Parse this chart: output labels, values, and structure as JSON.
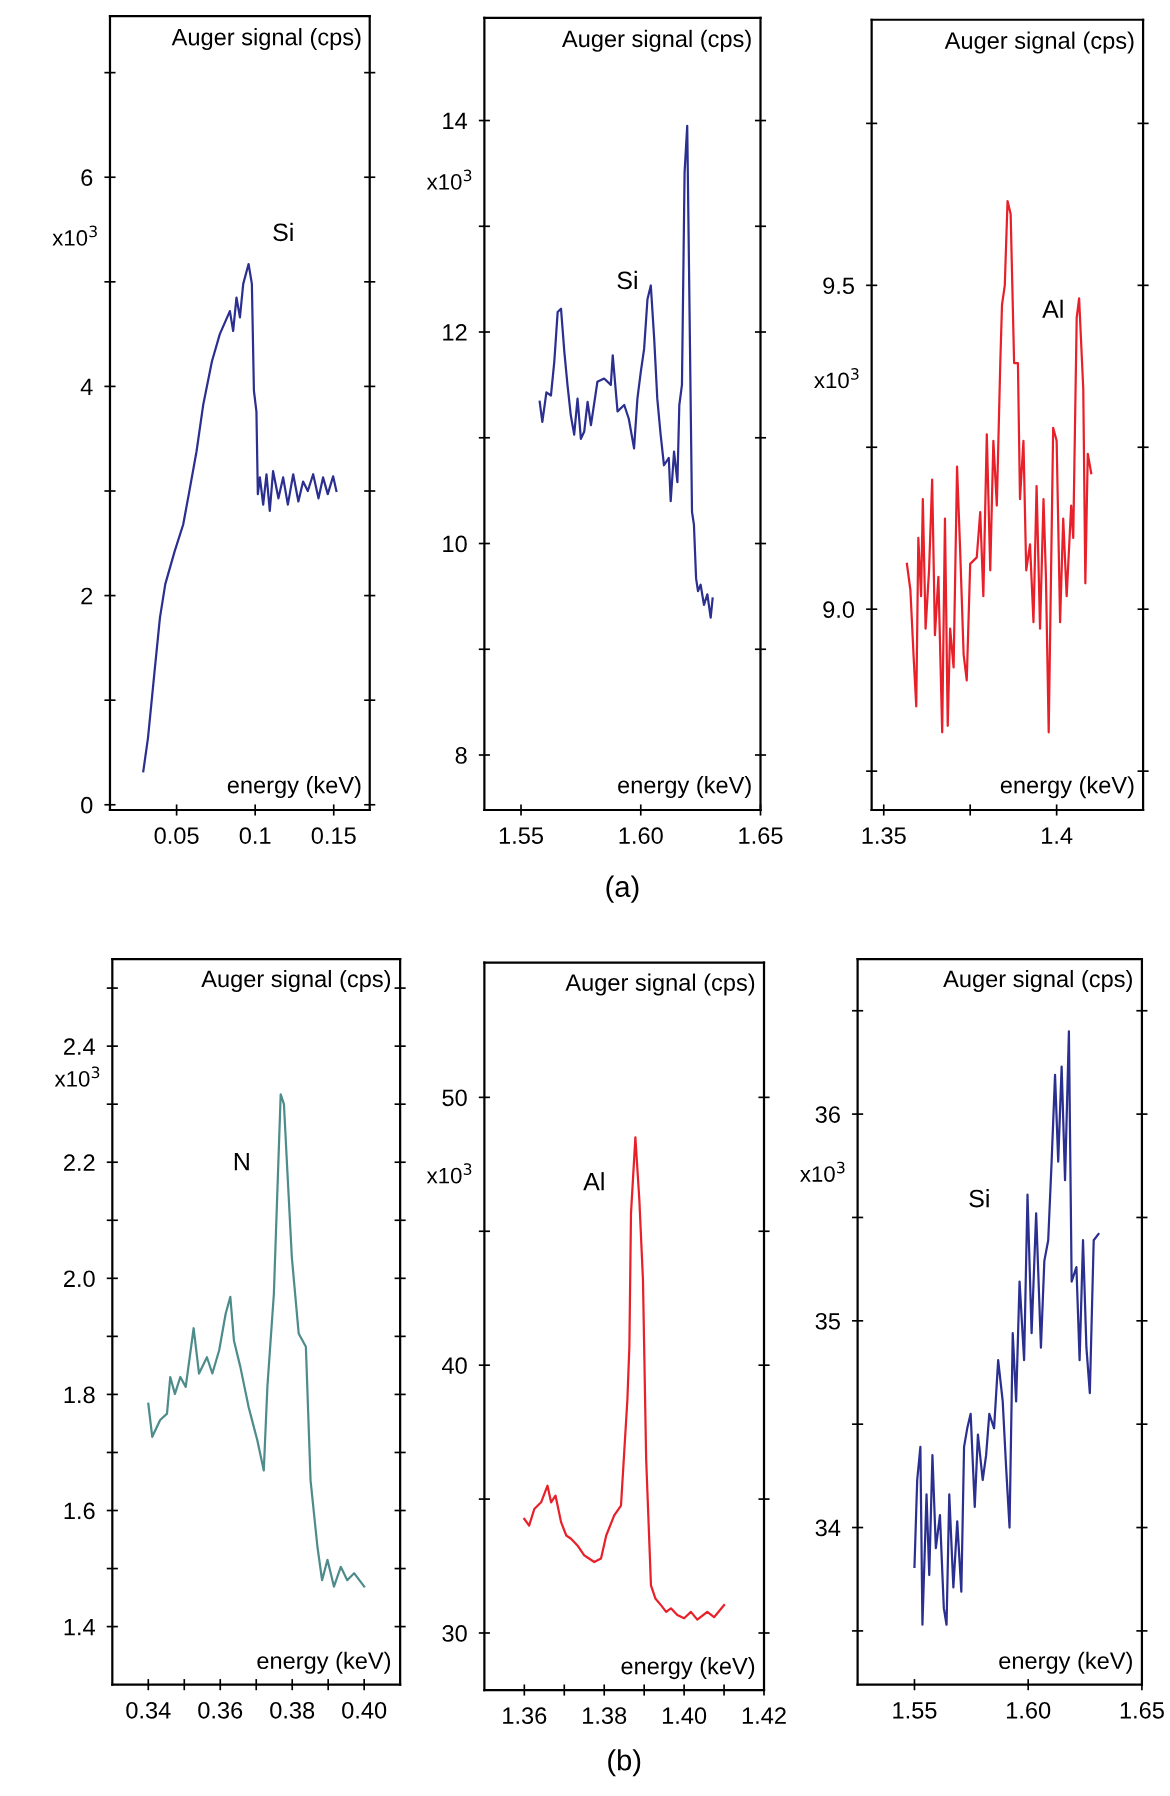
{
  "chart_data": [
    {
      "type": "line",
      "xlabel": "energy (keV)",
      "ylabel": "Auger signal (cps)",
      "color": "#2b2f8f",
      "x": [
        0.0288,
        0.0318,
        0.036,
        0.0394,
        0.0428,
        0.0487,
        0.0542,
        0.0585,
        0.0627,
        0.067,
        0.0725,
        0.0775,
        0.0839,
        0.086,
        0.0881,
        0.0903,
        0.0924,
        0.0958,
        0.0979,
        0.0992,
        0.1008,
        0.1017,
        0.103,
        0.1051,
        0.1072,
        0.1093,
        0.1114,
        0.1148,
        0.1178,
        0.1208,
        0.1242,
        0.1275,
        0.1305,
        0.1335,
        0.1369,
        0.1403,
        0.1432,
        0.1462,
        0.1496,
        0.1517
      ],
      "values": [
        0.32,
        0.64,
        1.28,
        1.79,
        2.11,
        2.42,
        2.68,
        3.03,
        3.38,
        3.83,
        4.24,
        4.5,
        4.72,
        4.53,
        4.85,
        4.66,
        4.98,
        5.17,
        4.98,
        3.96,
        3.76,
        2.97,
        3.13,
        2.87,
        3.16,
        2.81,
        3.19,
        2.93,
        3.13,
        2.87,
        3.16,
        2.9,
        3.09,
        3.0,
        3.16,
        2.93,
        3.13,
        2.97,
        3.14,
        3.0
      ],
      "xlim": [
        0.0076,
        0.1729
      ],
      "ylim": [
        -0.05,
        7.54
      ],
      "xticks": [
        0.05,
        0.1,
        0.15
      ],
      "yticks": [
        0,
        {
          "value": 1,
          "label": null
        },
        2,
        {
          "value": 3,
          "label": null
        },
        4,
        {
          "value": 5,
          "label": null
        },
        6,
        {
          "value": 7,
          "label": null
        }
      ],
      "annotations": [
        "x10$^{3}$",
        null,
        "Si"
      ]
    },
    {
      "type": "line",
      "xlabel": "energy (keV)",
      "ylabel": "Auger signal (cps)",
      "color": "#2b2f8f",
      "x": [
        1.5578,
        1.5589,
        1.5606,
        1.5625,
        1.5639,
        1.5653,
        1.5667,
        1.5681,
        1.5694,
        1.5708,
        1.5722,
        1.5736,
        1.575,
        1.5764,
        1.5778,
        1.5792,
        1.5819,
        1.5847,
        1.5875,
        1.5883,
        1.5903,
        1.5931,
        1.595,
        1.5972,
        1.5986,
        1.6,
        1.6014,
        1.6028,
        1.6042,
        1.6056,
        1.6069,
        1.6083,
        1.6097,
        1.6117,
        1.6125,
        1.6139,
        1.6153,
        1.6161,
        1.6172,
        1.6183,
        1.6194,
        1.62,
        1.6214,
        1.6222,
        1.6231,
        1.6239,
        1.625,
        1.6264,
        1.6278,
        1.6292,
        1.63
      ],
      "values": [
        11.34,
        11.15,
        11.43,
        11.4,
        11.72,
        12.19,
        12.22,
        11.81,
        11.5,
        11.21,
        11.03,
        11.37,
        10.99,
        11.06,
        11.34,
        11.12,
        11.53,
        11.56,
        11.5,
        11.78,
        11.25,
        11.31,
        11.18,
        10.9,
        11.37,
        11.62,
        11.84,
        12.31,
        12.44,
        11.94,
        11.37,
        11.03,
        10.74,
        10.81,
        10.4,
        10.87,
        10.58,
        11.31,
        11.5,
        13.51,
        13.95,
        12.88,
        10.3,
        10.18,
        9.67,
        9.55,
        9.61,
        9.42,
        9.52,
        9.3,
        9.48
      ],
      "xlim": [
        1.5347,
        1.65
      ],
      "ylim": [
        7.48,
        14.97
      ],
      "xticks": [
        1.55,
        {
          "value": 1.6,
          "label": "1.60"
        },
        1.65
      ],
      "yticks": [
        8,
        {
          "value": 9,
          "label": null
        },
        10,
        {
          "value": 11,
          "label": null
        },
        12,
        {
          "value": 13,
          "label": null
        },
        14
      ],
      "annotations": [
        "x10$^{3}$",
        "(a)",
        "Si"
      ]
    },
    {
      "type": "line",
      "xlabel": "energy (keV)",
      "ylabel": "Auger signal (cps)",
      "color": "#e8202a",
      "x": [
        1.3567,
        1.3577,
        1.3587,
        1.3594,
        1.36,
        1.3608,
        1.3613,
        1.3621,
        1.3631,
        1.364,
        1.3648,
        1.3658,
        1.3669,
        1.3677,
        1.3685,
        1.3692,
        1.3702,
        1.3712,
        1.3721,
        1.3731,
        1.374,
        1.375,
        1.3769,
        1.3779,
        1.3788,
        1.3798,
        1.3808,
        1.3817,
        1.3827,
        1.3837,
        1.3842,
        1.385,
        1.3858,
        1.3867,
        1.3877,
        1.3888,
        1.3894,
        1.3904,
        1.3912,
        1.3923,
        1.3933,
        1.3942,
        1.3952,
        1.3962,
        1.3969,
        1.3977,
        1.399,
        1.4,
        1.401,
        1.4019,
        1.4029,
        1.4042,
        1.4048,
        1.4058,
        1.4065,
        1.4077,
        1.4083,
        1.409,
        1.41
      ],
      "values": [
        9.07,
        9.03,
        8.92,
        8.85,
        9.11,
        9.02,
        9.17,
        8.97,
        9.06,
        9.2,
        8.96,
        9.05,
        8.81,
        9.14,
        8.82,
        8.97,
        8.91,
        9.22,
        9.09,
        8.93,
        8.89,
        9.07,
        9.08,
        9.15,
        9.02,
        9.27,
        9.06,
        9.26,
        9.16,
        9.38,
        9.47,
        9.5,
        9.63,
        9.61,
        9.38,
        9.38,
        9.17,
        9.26,
        9.06,
        9.1,
        8.98,
        9.19,
        8.97,
        9.17,
        9.05,
        8.81,
        9.28,
        9.26,
        8.98,
        9.14,
        9.02,
        9.16,
        9.11,
        9.45,
        9.48,
        9.34,
        9.04,
        9.24,
        9.21
      ],
      "xlim": [
        1.3465,
        1.425
      ],
      "ylim": [
        8.69,
        9.91
      ],
      "xticks": [
        1.35,
        {
          "value": 1.375,
          "label": null
        },
        1.4
      ],
      "yticks": [
        {
          "value": 8.75,
          "label": null
        },
        {
          "value": 9,
          "label": "9.0"
        },
        {
          "value": 9.25,
          "label": null
        },
        9.5,
        {
          "value": 9.75,
          "label": null
        }
      ],
      "annotations": [
        "x10$^{3}$",
        null,
        "Al"
      ]
    },
    {
      "type": "line",
      "xlabel": "energy (keV)",
      "ylabel": "Auger signal (cps)",
      "color": "#4e8c8c",
      "x": [
        0.34,
        0.3411,
        0.3433,
        0.3452,
        0.3461,
        0.3474,
        0.3489,
        0.3504,
        0.3526,
        0.3541,
        0.3563,
        0.3578,
        0.3597,
        0.3615,
        0.3628,
        0.3638,
        0.3656,
        0.3679,
        0.3703,
        0.3721,
        0.3731,
        0.3749,
        0.3768,
        0.3777,
        0.3786,
        0.3799,
        0.3818,
        0.3838,
        0.3851,
        0.387,
        0.3883,
        0.3898,
        0.3916,
        0.3935,
        0.3953,
        0.3972,
        0.4
      ],
      "values": [
        1.784,
        1.727,
        1.756,
        1.767,
        1.83,
        1.801,
        1.83,
        1.813,
        1.914,
        1.836,
        1.864,
        1.836,
        1.876,
        1.939,
        1.968,
        1.893,
        1.847,
        1.778,
        1.721,
        1.669,
        1.813,
        1.973,
        2.317,
        2.3,
        2.191,
        2.036,
        1.905,
        1.882,
        1.652,
        1.538,
        1.48,
        1.515,
        1.469,
        1.503,
        1.48,
        1.492,
        1.469
      ],
      "xlim": [
        0.33,
        0.41
      ],
      "ylim": [
        1.3,
        2.55
      ],
      "xticks": [
        0.34,
        {
          "value": 0.35,
          "label": null
        },
        0.36,
        {
          "value": 0.37,
          "label": null
        },
        0.38,
        {
          "value": 0.39,
          "label": null
        },
        {
          "value": 0.4,
          "label": "0.40"
        }
      ],
      "yticks": [
        1.4,
        {
          "value": 1.5,
          "label": null
        },
        1.6,
        {
          "value": 1.7,
          "label": null
        },
        1.8,
        {
          "value": 1.9,
          "label": null
        },
        {
          "value": 2,
          "label": "2.0"
        },
        {
          "value": 2.1,
          "label": null
        },
        2.2,
        {
          "value": 2.3,
          "label": null
        },
        2.4,
        {
          "value": 2.5,
          "label": null
        }
      ],
      "annotations": [
        "x10$^{3}$",
        null,
        "N"
      ]
    },
    {
      "type": "line",
      "xlabel": "energy (keV)",
      "ylabel": "Auger signal (cps)",
      "color": "#e8202a",
      "x": [
        1.36,
        1.3612,
        1.3625,
        1.3642,
        1.3658,
        1.3667,
        1.3678,
        1.3692,
        1.3705,
        1.3717,
        1.3733,
        1.375,
        1.3762,
        1.3775,
        1.3792,
        1.3805,
        1.3825,
        1.3842,
        1.385,
        1.3858,
        1.3863,
        1.3867,
        1.3878,
        1.3888,
        1.3897,
        1.3905,
        1.3917,
        1.3928,
        1.3942,
        1.3955,
        1.3967,
        1.3983,
        1.4,
        1.4017,
        1.4033,
        1.4058,
        1.4075,
        1.41
      ],
      "values": [
        34.26,
        34.01,
        34.63,
        34.88,
        35.5,
        34.88,
        35.13,
        34.14,
        33.64,
        33.52,
        33.27,
        32.9,
        32.78,
        32.65,
        32.78,
        33.64,
        34.39,
        34.76,
        36.74,
        38.72,
        40.71,
        45.66,
        48.51,
        46.16,
        43.18,
        36.49,
        31.78,
        31.29,
        31.04,
        30.79,
        30.92,
        30.67,
        30.55,
        30.79,
        30.5,
        30.79,
        30.59,
        31.04
      ],
      "xlim": [
        1.35,
        1.42
      ],
      "ylim": [
        27.87,
        55.03
      ],
      "xticks": [
        1.36,
        {
          "value": 1.37,
          "label": null
        },
        1.38,
        {
          "value": 1.39,
          "label": null
        },
        {
          "value": 1.4,
          "label": "1.40"
        },
        {
          "value": 1.41,
          "label": null
        },
        1.42
      ],
      "yticks": [
        30,
        {
          "value": 35,
          "label": null
        },
        40,
        {
          "value": 45,
          "label": null
        },
        50
      ],
      "annotations": [
        "x10$^{3}$",
        "(b)",
        "Al"
      ]
    },
    {
      "type": "line",
      "xlabel": "energy (keV)",
      "ylabel": "Auger signal (cps)",
      "color": "#2b2f8f",
      "x": [
        1.55,
        1.5512,
        1.5526,
        1.5535,
        1.5553,
        1.5565,
        1.5579,
        1.5594,
        1.5612,
        1.5629,
        1.5641,
        1.5653,
        1.5671,
        1.5688,
        1.5706,
        1.5718,
        1.5732,
        1.5747,
        1.5765,
        1.5779,
        1.58,
        1.5815,
        1.5829,
        1.585,
        1.5868,
        1.5888,
        1.5903,
        1.5918,
        1.5932,
        1.5947,
        1.5962,
        1.5982,
        1.5997,
        1.6015,
        1.6035,
        1.6056,
        1.6071,
        1.6088,
        1.6103,
        1.6118,
        1.6132,
        1.6147,
        1.6162,
        1.6179,
        1.6191,
        1.6212,
        1.6226,
        1.6241,
        1.6256,
        1.6271,
        1.6288,
        1.6309
      ],
      "values": [
        33.81,
        34.23,
        34.39,
        33.53,
        34.16,
        33.77,
        34.35,
        33.9,
        34.06,
        33.61,
        33.53,
        34.16,
        33.71,
        34.03,
        33.69,
        34.39,
        34.48,
        34.55,
        34.1,
        34.45,
        34.23,
        34.35,
        34.55,
        34.48,
        34.81,
        34.61,
        34.29,
        34.0,
        34.94,
        34.61,
        35.19,
        34.81,
        35.61,
        34.94,
        35.52,
        34.87,
        35.29,
        35.39,
        35.77,
        36.19,
        35.77,
        36.23,
        35.68,
        36.4,
        35.19,
        35.26,
        34.81,
        35.39,
        34.87,
        34.65,
        35.39,
        35.42
      ],
      "xlim": [
        1.525,
        1.65
      ],
      "ylim": [
        33.24,
        36.75
      ],
      "xticks": [
        1.55,
        {
          "value": 1.6,
          "label": "1.60"
        },
        1.65
      ],
      "yticks": [
        {
          "value": 33.5,
          "label": null
        },
        34,
        {
          "value": 34.5,
          "label": null
        },
        35,
        {
          "value": 35.5,
          "label": null
        },
        36,
        {
          "value": 36.5,
          "label": null
        }
      ],
      "annotations": [
        "x10$^{3}$",
        null,
        "Si"
      ]
    }
  ]
}
